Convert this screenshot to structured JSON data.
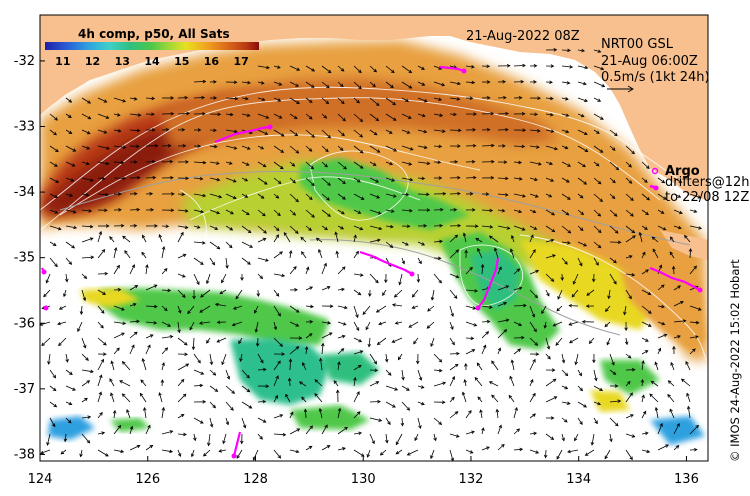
{
  "header": {
    "comp_label": "4h comp, p50, All Sats",
    "date_label": "21-Aug-2022 08Z",
    "product_label": "NRT00 GSL",
    "valid_label": "21-Aug 06:00Z",
    "scale_label": "0.5m/s (1kt 24h)"
  },
  "colorbar": {
    "ticks": [
      "11",
      "12",
      "13",
      "14",
      "15",
      "16",
      "17"
    ],
    "min": 10.4,
    "max": 17.6,
    "colors": [
      "#1f1fa8",
      "#2a5cd6",
      "#2fa0e0",
      "#3fcfc8",
      "#2fbf7f",
      "#4fc84a",
      "#9fd838",
      "#e8e020",
      "#f0a020",
      "#d86418",
      "#b83a12",
      "#8a0c0c"
    ]
  },
  "legend_argo": {
    "title": "Argo",
    "line1": "drifters@12h",
    "line2": "to 22/08 12Z"
  },
  "axes": {
    "x_ticks": [
      "124",
      "126",
      "128",
      "130",
      "132",
      "134",
      "136"
    ],
    "y_ticks": [
      "-32",
      "-33",
      "-34",
      "-35",
      "-36",
      "-37",
      "-38"
    ],
    "lon_range": [
      124,
      136.4
    ],
    "lat_range": [
      -38.1,
      -31.3
    ]
  },
  "colors": {
    "land": "#f8c08e",
    "no_data": "#ffffff",
    "drifter": "#ff00ff",
    "contour": "#ffffff",
    "arrow": "#000000"
  },
  "credit": "© IMOS 24-Aug-2022 15:02 Hobart"
}
